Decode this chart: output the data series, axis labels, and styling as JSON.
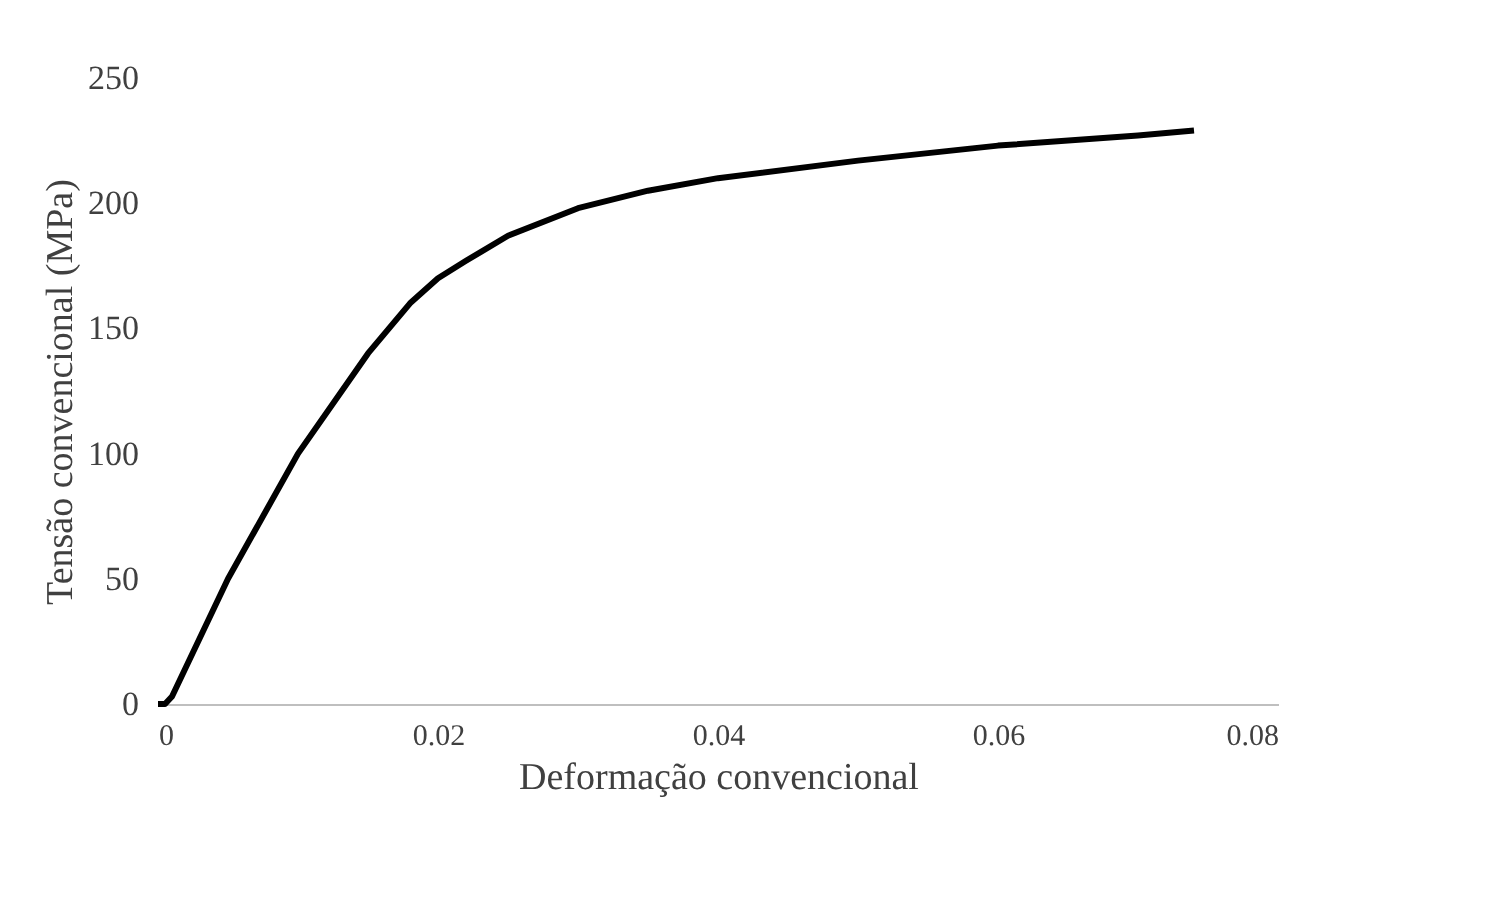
{
  "chart_data": {
    "type": "line",
    "xlabel": "Deformação convencional",
    "ylabel": "Tensão convencional (MPa)",
    "x": [
      0,
      0.0005,
      0.001,
      0.005,
      0.01,
      0.015,
      0.018,
      0.02,
      0.022,
      0.025,
      0.03,
      0.035,
      0.04,
      0.05,
      0.06,
      0.07,
      0.074
    ],
    "series": [
      {
        "color": "#000000",
        "values": [
          0,
          0,
          3,
          50,
          100,
          140,
          160,
          170,
          177,
          187,
          198,
          205,
          210,
          217,
          223,
          227,
          229
        ]
      }
    ],
    "xlim": [
      0,
      0.08
    ],
    "xticks": [
      0,
      0.02,
      0.04,
      0.06,
      0.08
    ],
    "ylim": [
      0,
      250
    ],
    "yticks": [
      0,
      50,
      100,
      150,
      200,
      250
    ],
    "grid": false,
    "legend": false,
    "marker": "none",
    "line_style": "solid"
  }
}
